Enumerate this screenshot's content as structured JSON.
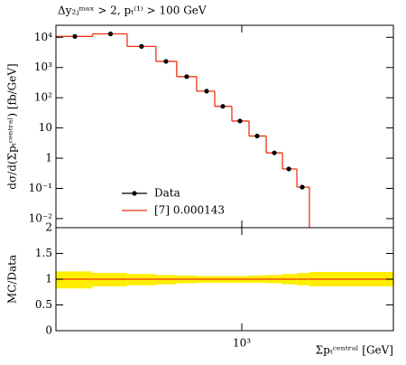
{
  "chart_data": {
    "type": "histogram",
    "title": "Δy₂ⱼᵐᵃˣ > 2, pₜ⁽¹⁾ > 100 GeV",
    "y_label": "dσ/d(Σpₜᶜᵉⁿᵗʳᵃˡ) [fb/GeV]",
    "x_label": "Σpₜᶜᵉⁿᵗʳᵃˡ [GeV]",
    "log_x": true,
    "log_y": true,
    "xlim": [
      139,
      5000
    ],
    "xticks": [
      {
        "value": 1000,
        "label": "10³"
      }
    ],
    "ylim": [
      0.005,
      25000
    ],
    "yticks": [
      {
        "value": 10000,
        "label": "10⁴"
      },
      {
        "value": 1000,
        "label": "10³"
      },
      {
        "value": 100,
        "label": "10²"
      },
      10,
      1,
      {
        "value": 0.1,
        "label": "10⁻¹"
      },
      {
        "value": 0.01,
        "label": "10⁻²"
      }
    ],
    "legend": "lower-left",
    "series": [
      {
        "name": "Data",
        "color": "#000000",
        "x": [
          170,
          248,
          345,
          447,
          557,
          688,
          818,
          981,
          1177,
          1413,
          1647,
          1900
        ],
        "values": [
          10700,
          13000,
          5000,
          1600,
          500,
          165,
          52,
          17,
          5.4,
          1.5,
          0.44,
          0.11
        ]
      },
      {
        "name": "[7] 0.000143",
        "color": "#ee3311",
        "bins": [
          139,
          205,
          296,
          402,
          501,
          619,
          750,
          900,
          1080,
          1296,
          1540,
          1795,
          2050
        ],
        "values": [
          10700,
          13000,
          5000,
          1600,
          500,
          165,
          52,
          17,
          5.4,
          1.5,
          0.44,
          0.11
        ]
      }
    ],
    "ratio": {
      "y_label": "MC/Data",
      "ylim": [
        0,
        2
      ],
      "yticks": [
        0,
        0.5,
        1,
        1.5,
        2
      ],
      "band_color": "#ffee00",
      "bins": [
        139,
        205,
        296,
        402,
        501,
        619,
        750,
        900,
        1080,
        1296,
        1540,
        1795,
        2050,
        5000
      ],
      "values": [
        1,
        1,
        1,
        1,
        1,
        1,
        1,
        1,
        1,
        1,
        1,
        1,
        1
      ],
      "lower": [
        0.82,
        0.86,
        0.88,
        0.9,
        0.92,
        0.93,
        0.93,
        0.93,
        0.93,
        0.92,
        0.9,
        0.88,
        0.86
      ],
      "upper": [
        1.15,
        1.12,
        1.1,
        1.08,
        1.07,
        1.06,
        1.06,
        1.06,
        1.07,
        1.08,
        1.1,
        1.12,
        1.14
      ]
    }
  }
}
